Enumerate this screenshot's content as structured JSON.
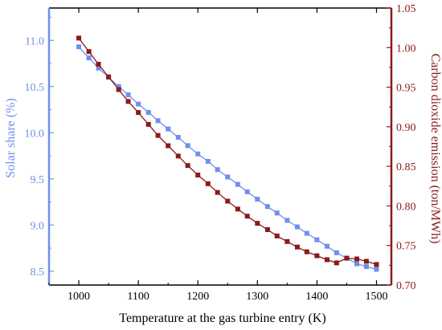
{
  "chart_data": {
    "type": "line",
    "title": "",
    "xlabel": "Temperature at the gas turbine entry (K)",
    "ylabel_left": "Solar share (%)",
    "ylabel_right": "Carbon dioxide emission (ton/MWh)",
    "xlim": [
      950,
      1525
    ],
    "ylim_left": [
      8.35,
      11.35
    ],
    "ylim_right": [
      0.7,
      1.05
    ],
    "x_ticks": [
      1000,
      1100,
      1200,
      1300,
      1400,
      1500
    ],
    "y_ticks_left": [
      8.5,
      9.0,
      9.5,
      10.0,
      10.5,
      11.0
    ],
    "y_ticks_left_labels": [
      "8.5",
      "9.0",
      "9.5",
      "10.0",
      "10.5",
      "11.0"
    ],
    "y_ticks_right": [
      0.7,
      0.75,
      0.8,
      0.85,
      0.9,
      0.95,
      1.0,
      1.05
    ],
    "y_ticks_right_labels": [
      "0.70",
      "0.75",
      "0.80",
      "0.85",
      "0.90",
      "0.95",
      "1.00",
      "1.05"
    ],
    "grid": false,
    "colors": {
      "left_axis": "#6f8ef0",
      "right_axis": "#8b1a1a",
      "frame": "#000000"
    },
    "series": [
      {
        "axis": "left",
        "color": "#6f8ef0",
        "marker": "square",
        "x": [
          1000,
          1017,
          1033,
          1050,
          1067,
          1083,
          1100,
          1117,
          1133,
          1150,
          1167,
          1183,
          1200,
          1217,
          1233,
          1250,
          1267,
          1283,
          1300,
          1317,
          1333,
          1350,
          1367,
          1383,
          1400,
          1417,
          1433,
          1450,
          1467,
          1483,
          1500
        ],
        "values": [
          10.93,
          10.81,
          10.7,
          10.6,
          10.5,
          10.41,
          10.31,
          10.22,
          10.13,
          10.04,
          9.95,
          9.86,
          9.77,
          9.69,
          9.6,
          9.52,
          9.44,
          9.36,
          9.28,
          9.2,
          9.13,
          9.05,
          8.98,
          8.91,
          8.84,
          8.77,
          8.7,
          8.64,
          8.58,
          8.55,
          8.52
        ]
      },
      {
        "axis": "right",
        "color": "#8b1a1a",
        "marker": "square",
        "x": [
          1000,
          1017,
          1033,
          1050,
          1067,
          1083,
          1100,
          1117,
          1133,
          1150,
          1167,
          1183,
          1200,
          1217,
          1233,
          1250,
          1267,
          1283,
          1300,
          1317,
          1333,
          1350,
          1367,
          1383,
          1400,
          1417,
          1433,
          1450,
          1467,
          1483,
          1500
        ],
        "values": [
          1.012,
          0.995,
          0.979,
          0.963,
          0.947,
          0.932,
          0.918,
          0.903,
          0.889,
          0.876,
          0.863,
          0.851,
          0.839,
          0.828,
          0.817,
          0.806,
          0.796,
          0.787,
          0.778,
          0.77,
          0.762,
          0.755,
          0.748,
          0.742,
          0.737,
          0.732,
          0.728,
          0.734,
          0.733,
          0.73,
          0.726
        ]
      }
    ]
  }
}
